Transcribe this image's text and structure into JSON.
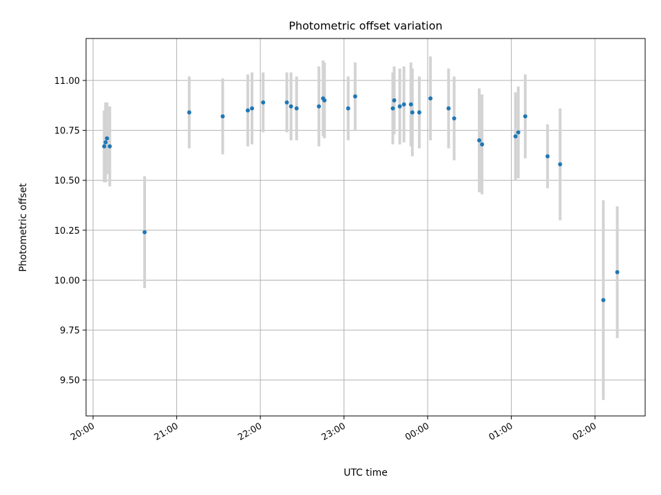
{
  "chart_data": {
    "type": "scatter",
    "title": "Photometric offset variation",
    "xlabel": "UTC time",
    "ylabel": "Photometric offset",
    "x_ticks": [
      "20:00",
      "21:00",
      "22:00",
      "23:00",
      "00:00",
      "01:00",
      "02:00"
    ],
    "y_ticks": [
      "9.50",
      "9.75",
      "10.00",
      "10.25",
      "10.50",
      "10.75",
      "11.00"
    ],
    "xlim": [
      "19:55",
      "02:36"
    ],
    "ylim": [
      9.32,
      11.21
    ],
    "grid": true,
    "marker_color": "#1f77b4",
    "errorbar_color": "#d3d3d3",
    "points": [
      {
        "time": "20:08",
        "y": 10.67,
        "err": 0.18
      },
      {
        "time": "20:09",
        "y": 10.69,
        "err": 0.2
      },
      {
        "time": "20:10",
        "y": 10.71,
        "err": 0.18
      },
      {
        "time": "20:12",
        "y": 10.67,
        "err": 0.2
      },
      {
        "time": "20:37",
        "y": 10.24,
        "err": 0.28
      },
      {
        "time": "21:09",
        "y": 10.84,
        "err": 0.18
      },
      {
        "time": "21:33",
        "y": 10.82,
        "err": 0.19
      },
      {
        "time": "21:51",
        "y": 10.85,
        "err": 0.18
      },
      {
        "time": "21:54",
        "y": 10.86,
        "err": 0.18
      },
      {
        "time": "22:02",
        "y": 10.89,
        "err": 0.15
      },
      {
        "time": "22:19",
        "y": 10.89,
        "err": 0.15
      },
      {
        "time": "22:22",
        "y": 10.87,
        "err": 0.17
      },
      {
        "time": "22:26",
        "y": 10.86,
        "err": 0.16
      },
      {
        "time": "22:42",
        "y": 10.87,
        "err": 0.2
      },
      {
        "time": "22:45",
        "y": 10.91,
        "err": 0.19
      },
      {
        "time": "22:46",
        "y": 10.9,
        "err": 0.19
      },
      {
        "time": "23:03",
        "y": 10.86,
        "err": 0.16
      },
      {
        "time": "23:08",
        "y": 10.92,
        "err": 0.17
      },
      {
        "time": "23:35",
        "y": 10.86,
        "err": 0.18
      },
      {
        "time": "23:36",
        "y": 10.9,
        "err": 0.17
      },
      {
        "time": "23:40",
        "y": 10.87,
        "err": 0.19
      },
      {
        "time": "23:43",
        "y": 10.88,
        "err": 0.19
      },
      {
        "time": "23:48",
        "y": 10.88,
        "err": 0.21
      },
      {
        "time": "23:49",
        "y": 10.84,
        "err": 0.22
      },
      {
        "time": "23:54",
        "y": 10.84,
        "err": 0.18
      },
      {
        "time": "00:02",
        "y": 10.91,
        "err": 0.21
      },
      {
        "time": "00:15",
        "y": 10.86,
        "err": 0.2
      },
      {
        "time": "00:19",
        "y": 10.81,
        "err": 0.21
      },
      {
        "time": "00:37",
        "y": 10.7,
        "err": 0.26
      },
      {
        "time": "00:39",
        "y": 10.68,
        "err": 0.25
      },
      {
        "time": "01:03",
        "y": 10.72,
        "err": 0.22
      },
      {
        "time": "01:05",
        "y": 10.74,
        "err": 0.23
      },
      {
        "time": "01:10",
        "y": 10.82,
        "err": 0.21
      },
      {
        "time": "01:26",
        "y": 10.62,
        "err": 0.16
      },
      {
        "time": "01:35",
        "y": 10.58,
        "err": 0.28
      },
      {
        "time": "02:06",
        "y": 9.9,
        "err": 0.5
      },
      {
        "time": "02:16",
        "y": 10.04,
        "err": 0.33
      }
    ]
  }
}
